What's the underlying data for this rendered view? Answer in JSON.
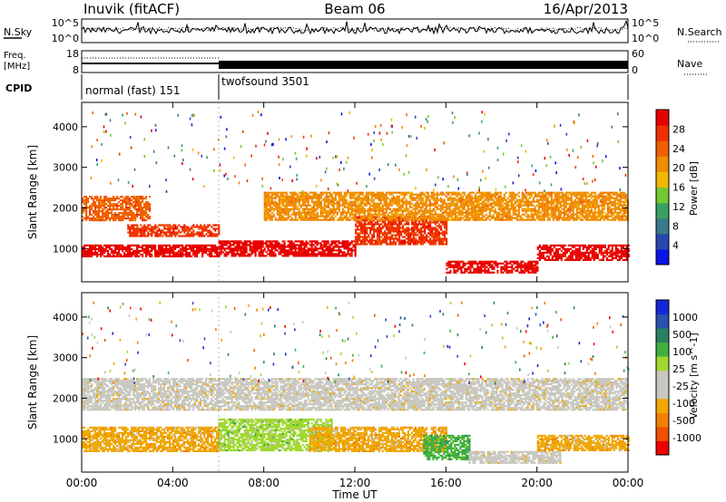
{
  "header": {
    "station": "Inuvik (fitACF)",
    "beam": "Beam 06",
    "date": "16/Apr/2013"
  },
  "noise_panel": {
    "left_label": "N.Sky",
    "right_label": "N.Search",
    "left_ticks": [
      "10^5",
      "10^0"
    ],
    "right_ticks": [
      "10^5",
      "10^0"
    ]
  },
  "freq_panel": {
    "left_label_1": "Freq.",
    "left_label_2": "[MHz]",
    "right_label": "Nave",
    "left_ticks": [
      "18",
      "8"
    ],
    "right_ticks": [
      "60",
      "0"
    ]
  },
  "cpid_panel": {
    "label": "CPID",
    "modes": [
      {
        "name": "normal (fast) 151",
        "start_h": 0,
        "end_h": 6
      },
      {
        "name": "twofsound 3501",
        "start_h": 6,
        "end_h": 24
      }
    ]
  },
  "colors": {
    "power": [
      "#0a14e6",
      "#2848b0",
      "#3a7a8a",
      "#3aa060",
      "#74c830",
      "#f0b800",
      "#f08c00",
      "#f06000",
      "#f03000",
      "#e80000"
    ],
    "velocity": [
      "#f00000",
      "#f05000",
      "#f08000",
      "#f0a800",
      "#c8c8c0",
      "#c8c8c0",
      "#a0d830",
      "#40b040",
      "#2a8060",
      "#2a50b0",
      "#1428d8"
    ]
  },
  "chart_data": [
    {
      "type": "heatmap",
      "title": "",
      "ylabel": "Slant Range [km]",
      "xlabel": "",
      "x_range_hours": [
        0,
        24
      ],
      "ylim": [
        180,
        4600
      ],
      "yticks": [
        1000,
        2000,
        3000,
        4000
      ],
      "colorbar": {
        "label": "Power [dB]",
        "ticks": [
          "28",
          "24",
          "20",
          "16",
          "12",
          "8",
          "4"
        ],
        "range": [
          0,
          30
        ]
      },
      "bands": [
        {
          "t0": 0,
          "t1": 6,
          "r0": 800,
          "r1": 1100,
          "level": 28
        },
        {
          "t0": 2,
          "t1": 6,
          "r0": 1300,
          "r1": 1600,
          "level": 26
        },
        {
          "t0": 0,
          "t1": 3,
          "r0": 1700,
          "r1": 2300,
          "level": 22
        },
        {
          "t0": 6,
          "t1": 12,
          "r0": 800,
          "r1": 1200,
          "level": 28
        },
        {
          "t0": 12,
          "t1": 16,
          "r0": 1100,
          "r1": 1800,
          "level": 24
        },
        {
          "t0": 8,
          "t1": 24,
          "r0": 1700,
          "r1": 2400,
          "level": 18
        },
        {
          "t0": 16,
          "t1": 20,
          "r0": 400,
          "r1": 700,
          "level": 28
        },
        {
          "t0": 20,
          "t1": 24,
          "r0": 700,
          "r1": 1100,
          "level": 28
        }
      ]
    },
    {
      "type": "heatmap",
      "title": "",
      "ylabel": "Slant Range [km]",
      "xlabel": "Time UT",
      "x_range_hours": [
        0,
        24
      ],
      "xticks": [
        "00:00",
        "04:00",
        "08:00",
        "12:00",
        "16:00",
        "20:00",
        "00:00"
      ],
      "ylim": [
        180,
        4600
      ],
      "yticks": [
        1000,
        2000,
        3000,
        4000
      ],
      "colorbar": {
        "label": "Velocity [m s^-1]",
        "ticks": [
          "1000",
          "500",
          "100",
          "25",
          "-25",
          "-100",
          "-500",
          "-1000"
        ],
        "range": [
          -1000,
          1000
        ]
      },
      "bands": [
        {
          "t0": 0,
          "t1": 6,
          "r0": 700,
          "r1": 1300,
          "level": -300
        },
        {
          "t0": 0,
          "t1": 6,
          "r0": 1700,
          "r1": 2500,
          "level": 0
        },
        {
          "t0": 6,
          "t1": 11,
          "r0": 700,
          "r1": 1500,
          "level": 150
        },
        {
          "t0": 10,
          "t1": 16,
          "r0": 700,
          "r1": 1300,
          "level": -300
        },
        {
          "t0": 6,
          "t1": 24,
          "r0": 1700,
          "r1": 2500,
          "level": 0
        },
        {
          "t0": 15,
          "t1": 17,
          "r0": 500,
          "r1": 1100,
          "level": 300
        },
        {
          "t0": 17,
          "t1": 21,
          "r0": 400,
          "r1": 700,
          "level": -150
        },
        {
          "t0": 20,
          "t1": 24,
          "r0": 700,
          "r1": 1100,
          "level": -300
        }
      ]
    }
  ],
  "axis": {
    "time_label": "Time UT",
    "sup_minus1": "-1"
  }
}
